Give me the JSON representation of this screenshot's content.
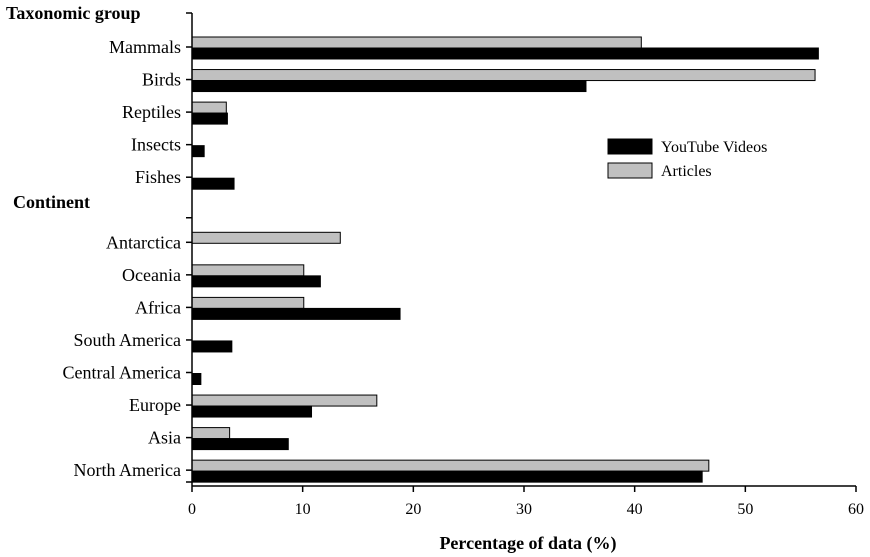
{
  "chart_data": {
    "type": "bar",
    "orientation": "horizontal",
    "xlabel": "Percentage of data (%)",
    "xlim": [
      0,
      60
    ],
    "xticks": [
      "0",
      "10",
      "20",
      "30",
      "40",
      "50",
      "60"
    ],
    "groups": [
      {
        "heading": "Taxonomic group",
        "categories": [
          "Mammals",
          "Birds",
          "Reptiles",
          "Insects",
          "Fishes"
        ]
      },
      {
        "heading": "Continent",
        "categories": [
          "Antarctica",
          "Oceania",
          "Africa",
          "South America",
          "Central America",
          "Europe",
          "Asia",
          "North America"
        ]
      }
    ],
    "series": [
      {
        "name": "Articles",
        "color": "#c0c0c0",
        "values": [
          40.6,
          56.3,
          3.1,
          0,
          0,
          13.4,
          10.1,
          10.1,
          0,
          0,
          16.7,
          3.4,
          46.7
        ]
      },
      {
        "name": "YouTube Videos",
        "color": "#000000",
        "values": [
          56.6,
          35.6,
          3.2,
          1.1,
          3.8,
          0,
          11.6,
          18.8,
          3.6,
          0.8,
          10.8,
          8.7,
          46.1
        ]
      }
    ],
    "legend": {
      "position": "right-middle",
      "order": [
        "YouTube Videos",
        "Articles"
      ]
    },
    "grid": false
  }
}
